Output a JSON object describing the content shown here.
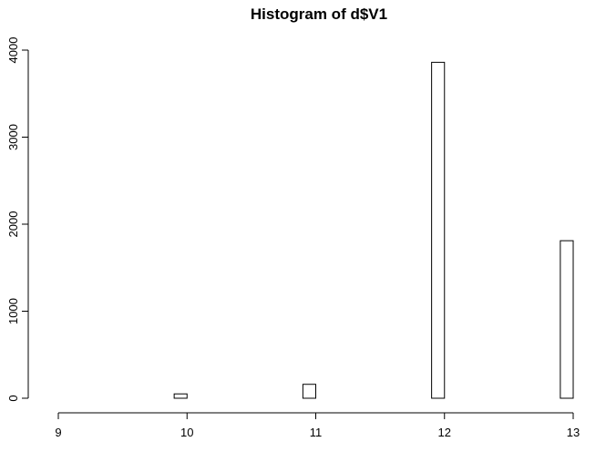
{
  "chart_data": {
    "type": "bar",
    "title": "Histogram of d$V1",
    "xlabel": "",
    "ylabel": "",
    "xlim": [
      9,
      13
    ],
    "ylim": [
      0,
      4000
    ],
    "x_ticks": [
      9,
      10,
      11,
      12,
      13
    ],
    "y_ticks": [
      0,
      1000,
      2000,
      3000,
      4000
    ],
    "bin_width": 0.1,
    "bins": [
      {
        "start": 9.0,
        "end": 9.1,
        "count": 0
      },
      {
        "start": 9.1,
        "end": 9.2,
        "count": 0
      },
      {
        "start": 9.2,
        "end": 9.3,
        "count": 0
      },
      {
        "start": 9.3,
        "end": 9.4,
        "count": 0
      },
      {
        "start": 9.4,
        "end": 9.5,
        "count": 0
      },
      {
        "start": 9.5,
        "end": 9.6,
        "count": 0
      },
      {
        "start": 9.6,
        "end": 9.7,
        "count": 0
      },
      {
        "start": 9.7,
        "end": 9.8,
        "count": 0
      },
      {
        "start": 9.8,
        "end": 9.9,
        "count": 0
      },
      {
        "start": 9.9,
        "end": 10.0,
        "count": 50
      },
      {
        "start": 10.0,
        "end": 10.1,
        "count": 0
      },
      {
        "start": 10.1,
        "end": 10.2,
        "count": 0
      },
      {
        "start": 10.2,
        "end": 10.3,
        "count": 0
      },
      {
        "start": 10.3,
        "end": 10.4,
        "count": 0
      },
      {
        "start": 10.4,
        "end": 10.5,
        "count": 0
      },
      {
        "start": 10.5,
        "end": 10.6,
        "count": 0
      },
      {
        "start": 10.6,
        "end": 10.7,
        "count": 0
      },
      {
        "start": 10.7,
        "end": 10.8,
        "count": 0
      },
      {
        "start": 10.8,
        "end": 10.9,
        "count": 0
      },
      {
        "start": 10.9,
        "end": 11.0,
        "count": 160
      },
      {
        "start": 11.0,
        "end": 11.1,
        "count": 0
      },
      {
        "start": 11.1,
        "end": 11.2,
        "count": 0
      },
      {
        "start": 11.2,
        "end": 11.3,
        "count": 0
      },
      {
        "start": 11.3,
        "end": 11.4,
        "count": 0
      },
      {
        "start": 11.4,
        "end": 11.5,
        "count": 0
      },
      {
        "start": 11.5,
        "end": 11.6,
        "count": 0
      },
      {
        "start": 11.6,
        "end": 11.7,
        "count": 0
      },
      {
        "start": 11.7,
        "end": 11.8,
        "count": 0
      },
      {
        "start": 11.8,
        "end": 11.9,
        "count": 0
      },
      {
        "start": 11.9,
        "end": 12.0,
        "count": 3860
      },
      {
        "start": 12.0,
        "end": 12.1,
        "count": 0
      },
      {
        "start": 12.1,
        "end": 12.2,
        "count": 0
      },
      {
        "start": 12.2,
        "end": 12.3,
        "count": 0
      },
      {
        "start": 12.3,
        "end": 12.4,
        "count": 0
      },
      {
        "start": 12.4,
        "end": 12.5,
        "count": 0
      },
      {
        "start": 12.5,
        "end": 12.6,
        "count": 0
      },
      {
        "start": 12.6,
        "end": 12.7,
        "count": 0
      },
      {
        "start": 12.7,
        "end": 12.8,
        "count": 0
      },
      {
        "start": 12.8,
        "end": 12.9,
        "count": 0
      },
      {
        "start": 12.9,
        "end": 13.0,
        "count": 1810
      }
    ],
    "grid": false,
    "bar_fill": "#ffffff",
    "bar_stroke": "#000000"
  }
}
